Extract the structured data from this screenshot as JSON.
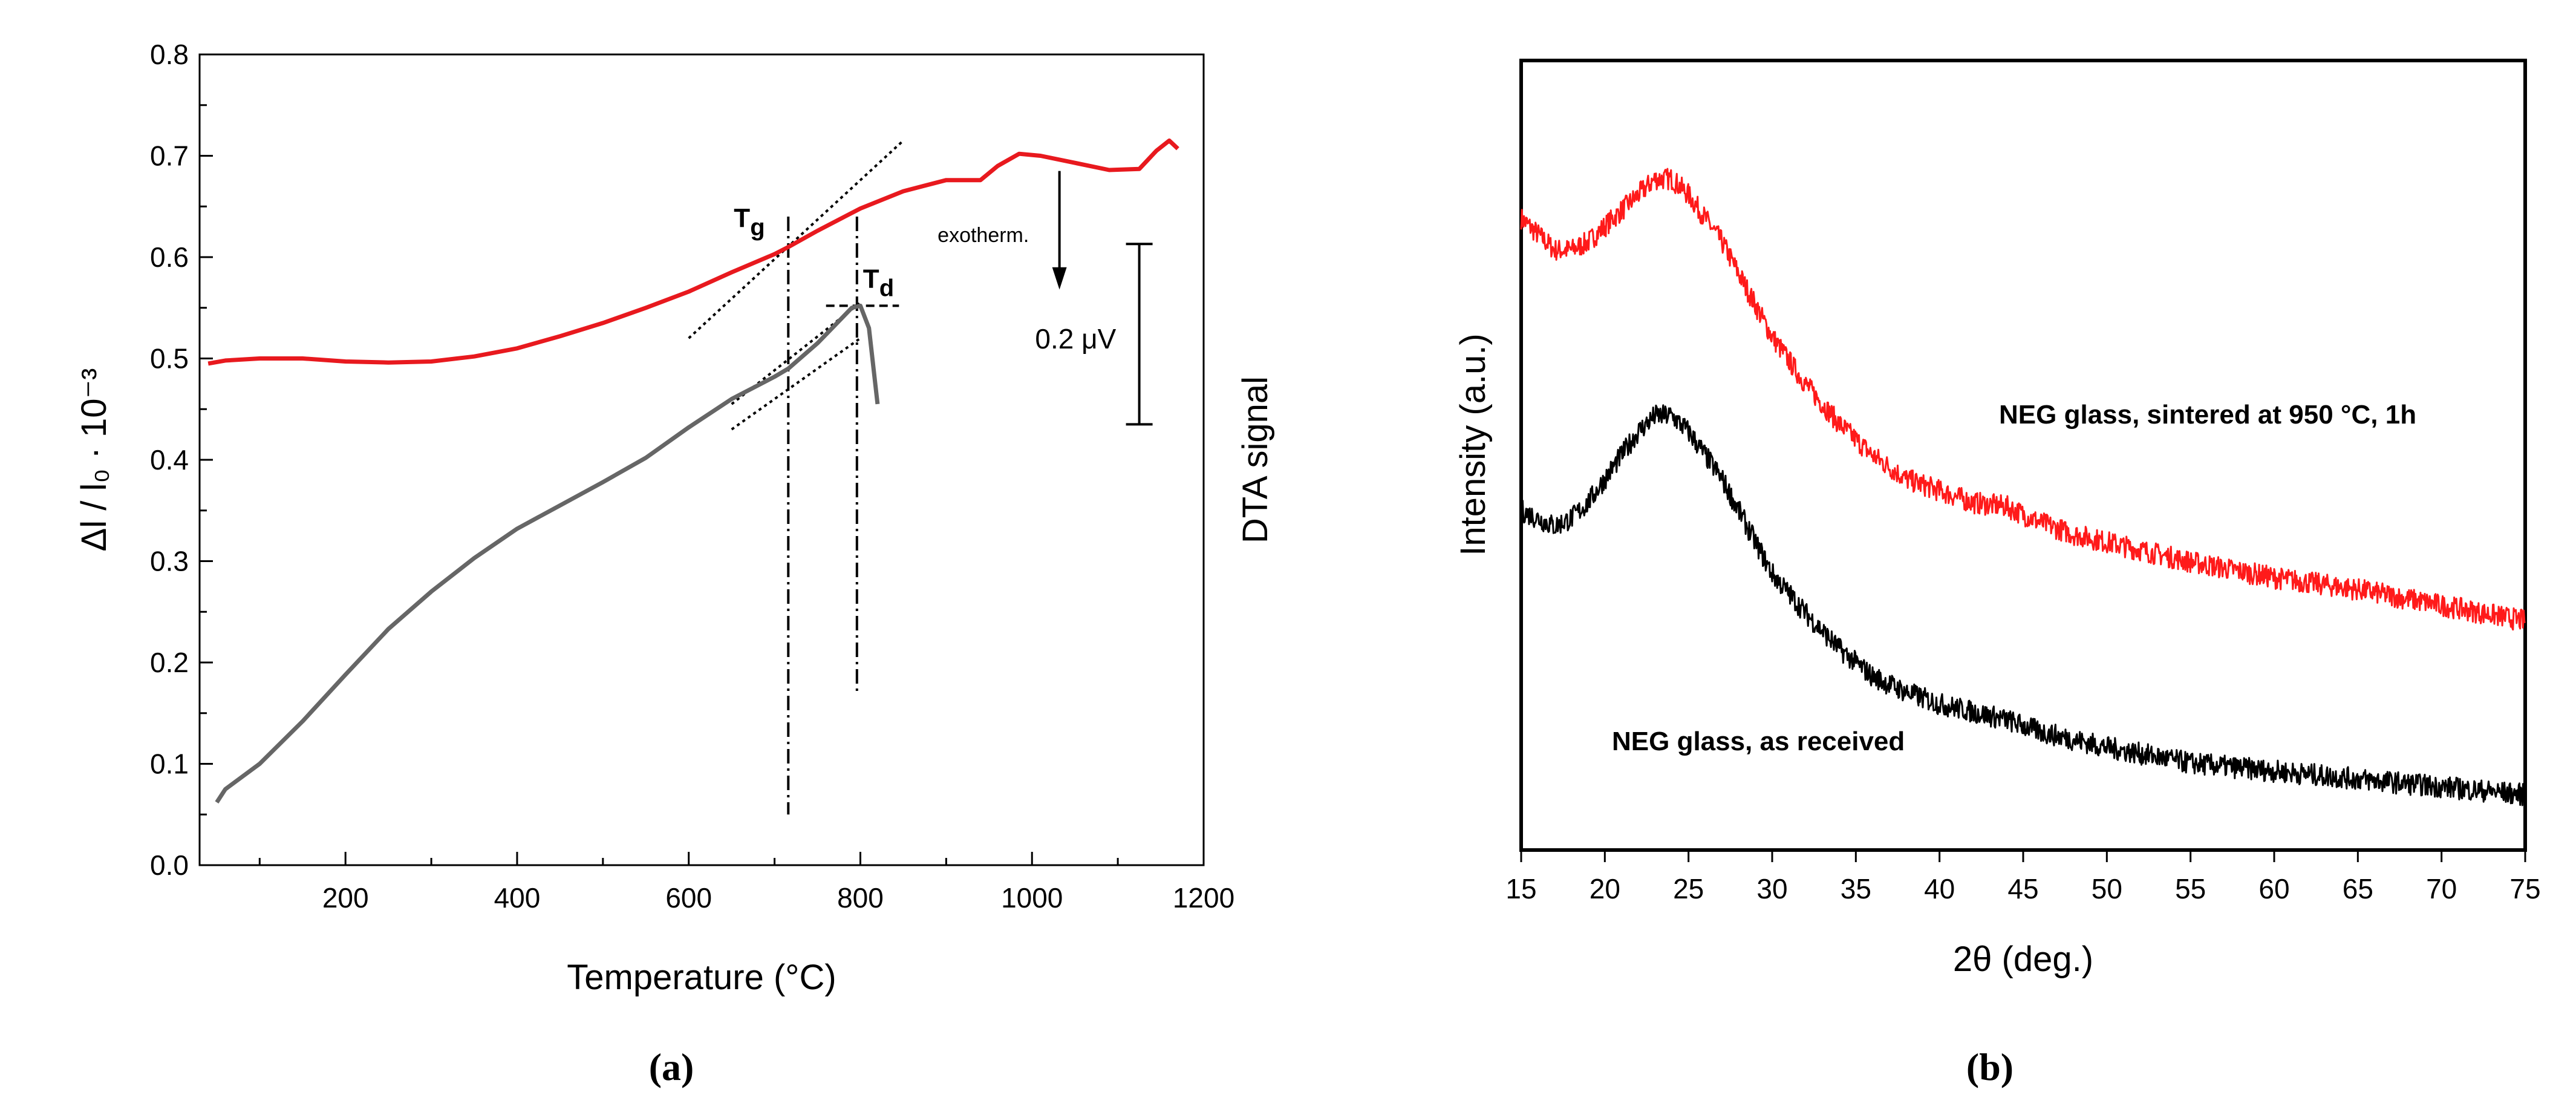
{
  "chart_data": [
    {
      "type": "line",
      "panel_label": "(a)",
      "xlabel": "Temperature (°C)",
      "ylabel": "Δl / l₀ · 10⁻³",
      "y2label": "DTA signal",
      "xlim": [
        30,
        1200
      ],
      "ylim": [
        0.0,
        0.8
      ],
      "xticks": [
        "200",
        "400",
        "600",
        "800",
        "1000",
        "1200"
      ],
      "yticks": [
        "0.0",
        "0.1",
        "0.2",
        "0.3",
        "0.4",
        "0.5",
        "0.6",
        "0.7",
        "0.8"
      ],
      "grid": false,
      "series": [
        {
          "role": "DTA",
          "color": "#e8191e",
          "x": [
            40,
            60,
            100,
            150,
            200,
            250,
            300,
            350,
            400,
            450,
            500,
            550,
            600,
            650,
            700,
            716,
            750,
            800,
            850,
            900,
            940,
            960,
            985,
            1010,
            1050,
            1090,
            1125,
            1145,
            1160,
            1170
          ],
          "y": [
            0.495,
            0.498,
            0.5,
            0.5,
            0.497,
            0.496,
            0.497,
            0.502,
            0.51,
            0.522,
            0.535,
            0.55,
            0.566,
            0.585,
            0.603,
            0.61,
            0.626,
            0.648,
            0.665,
            0.676,
            0.676,
            0.69,
            0.702,
            0.7,
            0.693,
            0.686,
            0.687,
            0.705,
            0.715,
            0.707
          ]
        },
        {
          "role": "dilatometry",
          "color": "#666666",
          "x": [
            50,
            60,
            100,
            150,
            200,
            250,
            300,
            350,
            400,
            450,
            500,
            550,
            600,
            650,
            700,
            716,
            750,
            790,
            800,
            810,
            820
          ],
          "y": [
            0.062,
            0.075,
            0.1,
            0.142,
            0.188,
            0.233,
            0.27,
            0.303,
            0.332,
            0.355,
            0.378,
            0.402,
            0.432,
            0.46,
            0.482,
            0.49,
            0.515,
            0.55,
            0.552,
            0.53,
            0.455
          ]
        }
      ],
      "annotations": [
        {
          "text": "T",
          "subscript": "g",
          "x": 716
        },
        {
          "text": "T",
          "subscript": "d",
          "x": 796
        },
        {
          "text": "exotherm."
        },
        {
          "text": "0.2 μV"
        }
      ]
    },
    {
      "type": "line",
      "panel_label": "(b)",
      "xlabel": "2θ (deg.)",
      "ylabel": "Intensity (a.u.)",
      "xlim": [
        15,
        75
      ],
      "yticks_shown": false,
      "xticks": [
        "15",
        "20",
        "25",
        "30",
        "35",
        "40",
        "45",
        "50",
        "55",
        "60",
        "65",
        "70",
        "75"
      ],
      "grid": false,
      "series": [
        {
          "name": "NEG glass, sintered at 950 °C, 1h",
          "color": "#ff1a1a",
          "x": [
            15,
            16,
            17,
            18,
            19,
            20,
            21,
            22,
            23,
            24,
            25,
            26,
            27,
            28,
            29,
            30,
            32,
            34,
            36,
            38,
            40,
            42,
            44,
            46,
            48,
            50,
            55,
            60,
            65,
            70,
            75
          ],
          "y": [
            0.8,
            0.78,
            0.76,
            0.76,
            0.77,
            0.79,
            0.81,
            0.83,
            0.85,
            0.85,
            0.83,
            0.8,
            0.77,
            0.73,
            0.69,
            0.65,
            0.59,
            0.54,
            0.5,
            0.47,
            0.455,
            0.44,
            0.435,
            0.415,
            0.4,
            0.39,
            0.365,
            0.345,
            0.33,
            0.31,
            0.29
          ]
        },
        {
          "name": "NEG glass, as received",
          "color": "#000000",
          "x": [
            15,
            16,
            17,
            18,
            19,
            20,
            21,
            22,
            23,
            24,
            25,
            26,
            27,
            28,
            29,
            30,
            32,
            34,
            36,
            38,
            40,
            42,
            44,
            46,
            48,
            50,
            55,
            60,
            65,
            70,
            75
          ],
          "y": [
            0.43,
            0.42,
            0.41,
            0.42,
            0.44,
            0.47,
            0.5,
            0.53,
            0.55,
            0.55,
            0.53,
            0.5,
            0.47,
            0.43,
            0.39,
            0.35,
            0.3,
            0.255,
            0.22,
            0.2,
            0.185,
            0.175,
            0.165,
            0.15,
            0.14,
            0.13,
            0.11,
            0.1,
            0.09,
            0.08,
            0.07
          ]
        }
      ]
    }
  ]
}
